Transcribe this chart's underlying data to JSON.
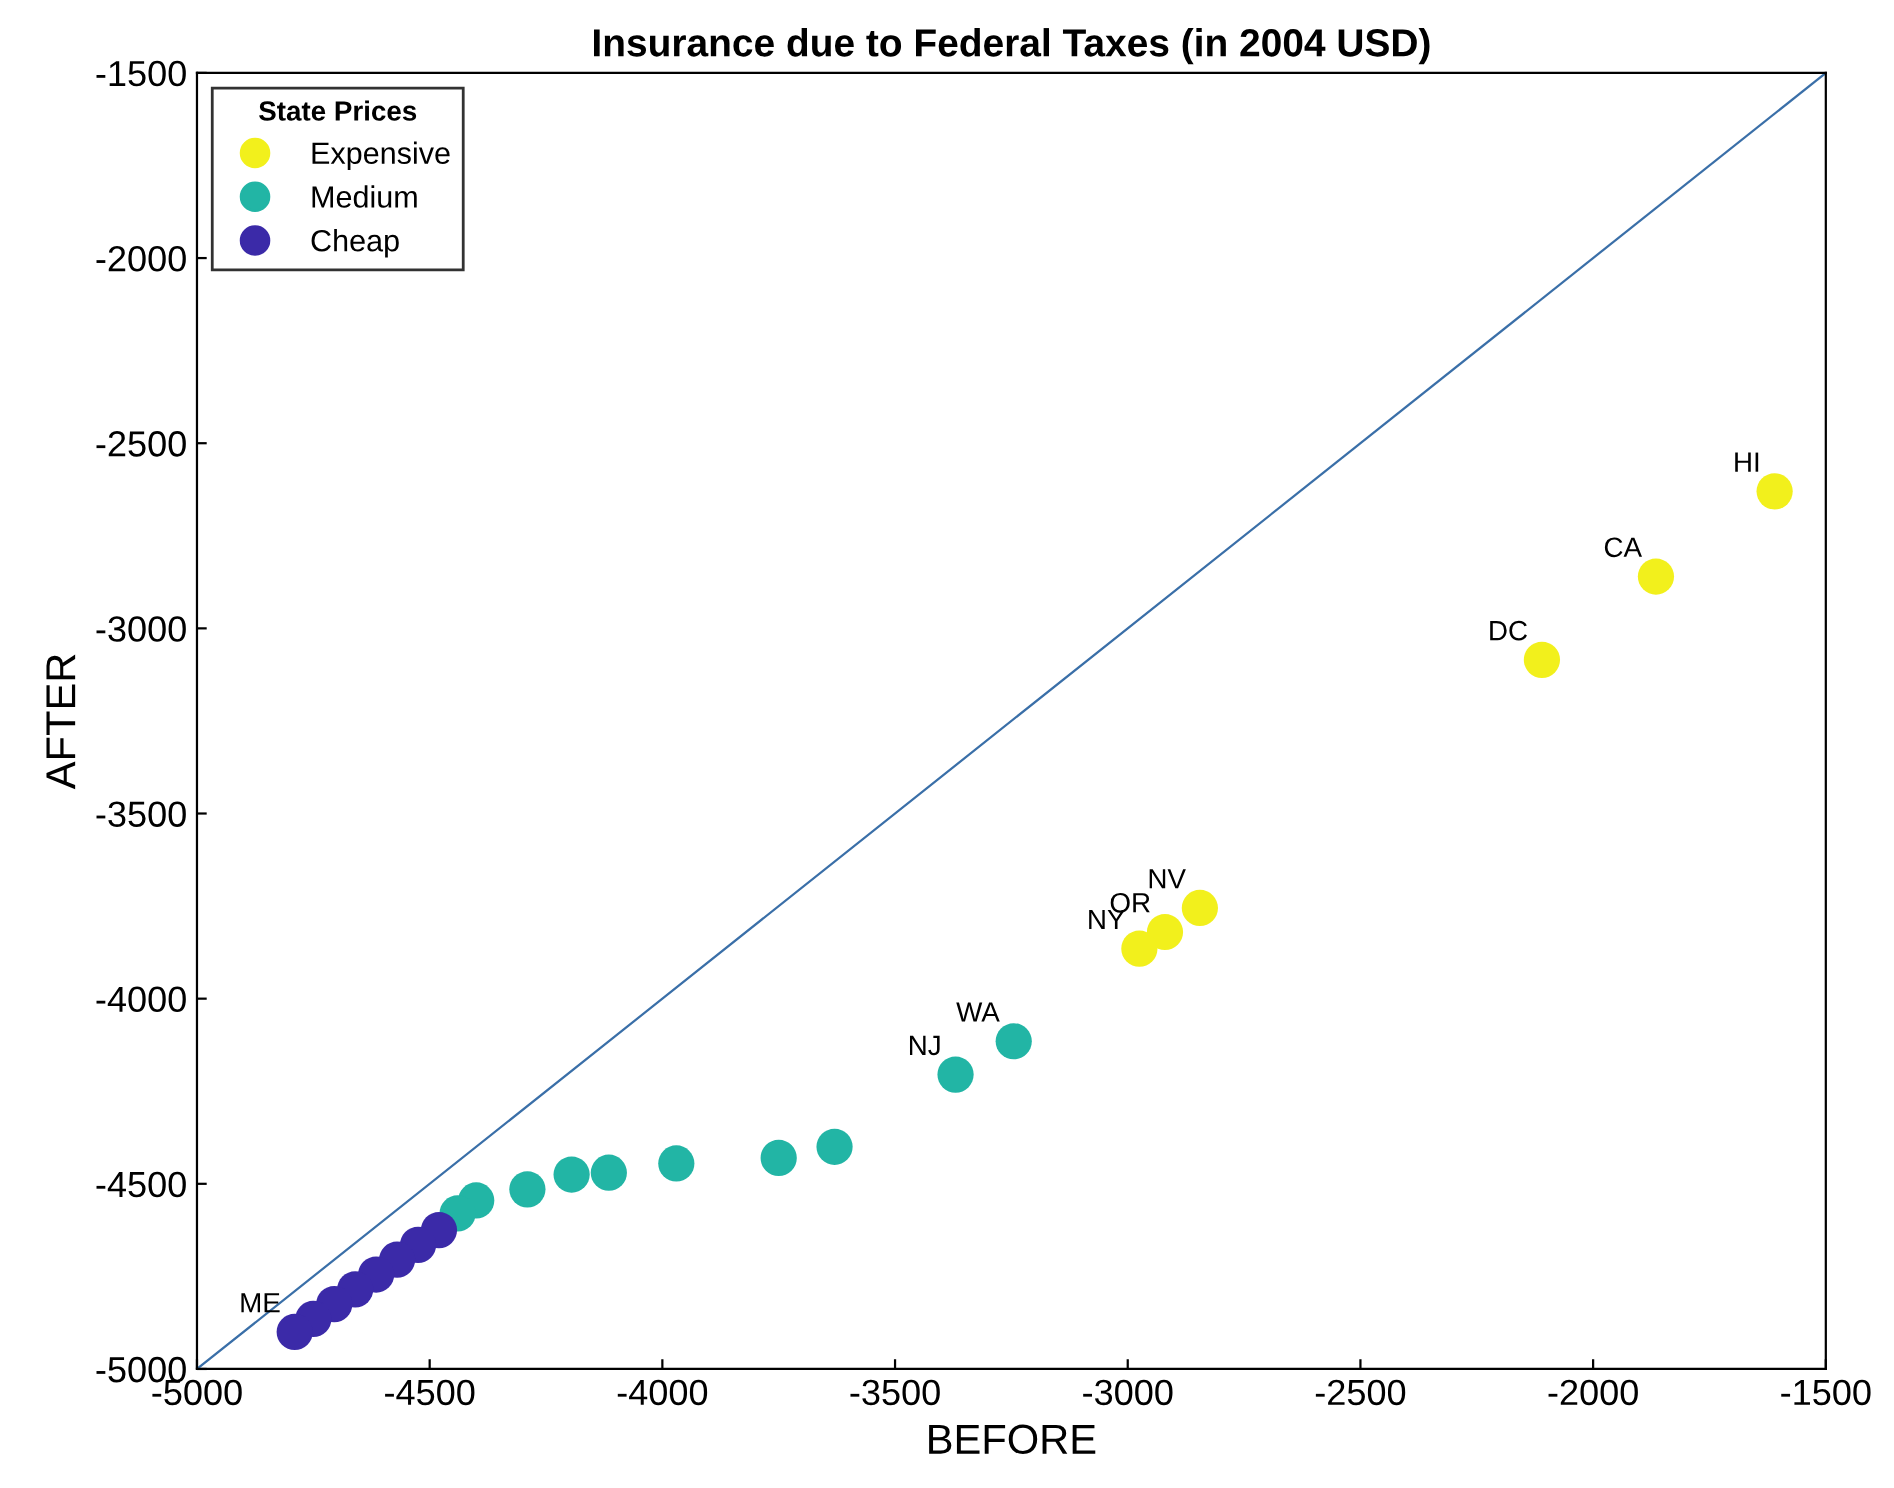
{
  "chart_data": {
    "type": "scatter",
    "title": "Insurance due to Federal Taxes (in 2004 USD)",
    "xlabel": "BEFORE",
    "ylabel": "AFTER",
    "legend_title": "State Prices",
    "legend": "top left",
    "grid": false,
    "marker": "circle",
    "xlim": [
      -5000,
      -1500
    ],
    "ylim": [
      -5000,
      -1500
    ],
    "xticks": [
      -5000,
      -4500,
      -4000,
      -3500,
      -3000,
      -2500,
      -2000,
      -1500
    ],
    "yticks": [
      -5000,
      -4500,
      -4000,
      -3500,
      -3000,
      -2500,
      -2000,
      -1500
    ],
    "series": [
      {
        "name": "Expensive",
        "color": "#f2f01c",
        "x": [
          -1610,
          -1865,
          -2110,
          -2845,
          -2920,
          -2975
        ],
        "values": [
          -2630,
          -2860,
          -3085,
          -3755,
          -3820,
          -3865
        ]
      },
      {
        "name": "Medium",
        "color": "#22b5a5",
        "x": [
          -3245,
          -3370,
          -3630,
          -3750,
          -3970,
          -4115,
          -4195,
          -4290,
          -4400,
          -4440
        ],
        "values": [
          -4115,
          -4205,
          -4400,
          -4430,
          -4445,
          -4470,
          -4475,
          -4515,
          -4545,
          -4580
        ]
      },
      {
        "name": "Cheap",
        "color": "#3b2aa8",
        "x": [
          -4480,
          -4525,
          -4570,
          -4615,
          -4660,
          -4705,
          -4750,
          -4790
        ],
        "values": [
          -4625,
          -4665,
          -4705,
          -4745,
          -4785,
          -4825,
          -4865,
          -4900
        ]
      },
      {
        "type": "line",
        "marker": "none",
        "color": "#3a6fa8",
        "x": [
          -5000,
          -1500
        ],
        "values": [
          -5000,
          -1500
        ]
      }
    ],
    "annotations": [
      {
        "text": "HI",
        "x": -1610,
        "y": -2630
      },
      {
        "text": "CA",
        "x": -1865,
        "y": -2860
      },
      {
        "text": "DC",
        "x": -2110,
        "y": -3085
      },
      {
        "text": "NV",
        "x": -2845,
        "y": -3755
      },
      {
        "text": "OR",
        "x": -2920,
        "y": -3820
      },
      {
        "text": "NY",
        "x": -2975,
        "y": -3865
      },
      {
        "text": "WA",
        "x": -3245,
        "y": -4115
      },
      {
        "text": "NJ",
        "x": -3370,
        "y": -4205
      },
      {
        "text": "ME",
        "x": -4790,
        "y": -4900
      }
    ]
  }
}
